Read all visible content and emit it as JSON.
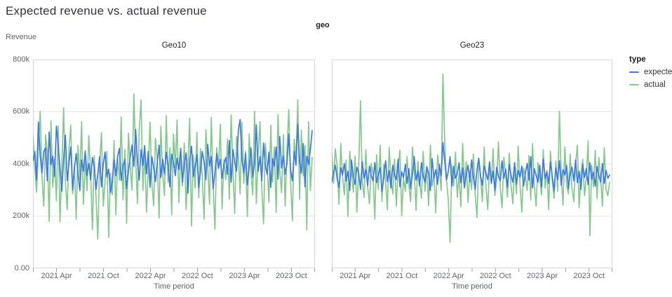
{
  "page": {
    "title": "Expected revenue vs. actual revenue"
  },
  "chart": {
    "facet_field": "geo",
    "y_axis": {
      "title": "Revenue",
      "tick_labels_top_to_bottom": [
        "800k",
        "600k",
        "400k",
        "200k",
        "0.00"
      ]
    },
    "x_axis": {
      "title": "Time period",
      "tick_labels": [
        "2021 Apr",
        "2021 Oct",
        "2022 Apr",
        "2022 Oct",
        "2023 Apr",
        "2023 Oct"
      ]
    },
    "legend": {
      "title": "type",
      "items": [
        {
          "label": "expected",
          "color": "#3d79e8"
        },
        {
          "label": "actual",
          "color": "#85c98f"
        }
      ]
    },
    "colors": {
      "gridline": "#e6e6e6",
      "panel_border": "#d6d6d6",
      "tick": "#9a9a9a",
      "label_gray": "#5f6368"
    }
  },
  "chart_data": {
    "type": "line",
    "title": "Expected revenue vs. actual revenue",
    "facet_by": "geo",
    "xlabel": "Time period",
    "ylabel": "Revenue",
    "ylim": [
      0,
      800000
    ],
    "x_unit": "week",
    "x_range": "2021-01 to 2023-12 (weekly samples, 156 points per series)",
    "x_tick_labels": [
      "2021 Apr",
      "2021 Oct",
      "2022 Apr",
      "2022 Oct",
      "2023 Apr",
      "2023 Oct"
    ],
    "y_unit": "revenue, values_k are thousands (approximate, read from plot)",
    "legend_position": "right",
    "grid": true,
    "facets": [
      {
        "name": "Geo10",
        "series": [
          {
            "name": "expected",
            "color": "#3d79e8",
            "values_k": [
              412,
              448,
              338,
              560,
              430,
              365,
              448,
              462,
              335,
              522,
              398,
              430,
              352,
              545,
              470,
              385,
              295,
              420,
              510,
              336,
              405,
              465,
              300,
              385,
              440,
              361,
              298,
              415,
              372,
              450,
              355,
              402,
              338,
              425,
              390,
              302,
              360,
              428,
              312,
              398,
              445,
              350,
              380,
              290,
              330,
              415,
              355,
              430,
              460,
              336,
              392,
              418,
              305,
              372,
              428,
              472,
              390,
              532,
              410,
              338,
              455,
              395,
              470,
              362,
              448,
              310,
              428,
              385,
              332,
              405,
              472,
              348,
              418,
              362,
              445,
              395,
              312,
              438,
              405,
              355,
              422,
              378,
              460,
              330,
              398,
              442,
              288,
              415,
              468,
              352,
              390,
              435,
              310,
              372,
              448,
              405,
              340,
              475,
              392,
              428,
              305,
              365,
              440,
              382,
              418,
              345,
              398,
              425,
              360,
              490,
              330,
              455,
              405,
              372,
              530,
              570,
              418,
              365,
              440,
              320,
              385,
              462,
              348,
              405,
              550,
              372,
              428,
              335,
              480,
              395,
              360,
              445,
              310,
              420,
              392,
              465,
              342,
              505,
              385,
              430,
              360,
              402,
              515,
              378,
              335,
              448,
              395,
              552,
              410,
              365,
              478,
              312,
              430,
              398,
              455,
              528
            ]
          },
          {
            "name": "actual",
            "color": "#85c98f",
            "values_k": [
              505,
              388,
              292,
              455,
              602,
              350,
              238,
              512,
              442,
              180,
              565,
              310,
              420,
              258,
              545,
              178,
              388,
              615,
              332,
              225,
              462,
              548,
              285,
              395,
              188,
              472,
              340,
              562,
              245,
              415,
              298,
              508,
              362,
              148,
              432,
              270,
              112,
              395,
              520,
              238,
              330,
              448,
              118,
              365,
              282,
              490,
              205,
              425,
              338,
              580,
              262,
              455,
              172,
              518,
              390,
              300,
              668,
              420,
              248,
              532,
              645,
              298,
              452,
              215,
              385,
              560,
              325,
              240,
              498,
              418,
              192,
              545,
              362,
              278,
              585,
              330,
              462,
              205,
              515,
              385,
              568,
              252,
              440,
              315,
              480,
              225,
              398,
              575,
              162,
              435,
              308,
              522,
              270,
              458,
              348,
              188,
              532,
              395,
              245,
              578,
              318,
              150,
              462,
              385,
              552,
              228,
              415,
              340,
              495,
              265,
              588,
              375,
              210,
              505,
              432,
              285,
              560,
              325,
              448,
              198,
              515,
              370,
              282,
              602,
              248,
              435,
              562,
              315,
              170,
              478,
              395,
              252,
              548,
              330,
              465,
              215,
              590,
              372,
              290,
              512,
              238,
              455,
              608,
              335,
              182,
              495,
              412,
              645,
              265,
              530,
              355,
              470,
              148,
              562,
              298,
              425
            ]
          }
        ]
      },
      {
        "name": "Geo23",
        "series": [
          {
            "name": "expected",
            "color": "#3d79e8",
            "values_k": [
              330,
              368,
              395,
              342,
              310,
              385,
              358,
              402,
              335,
              372,
              298,
              415,
              350,
              322,
              388,
              365,
              302,
              410,
              345,
              378,
              318,
              392,
              355,
              335,
              405,
              328,
              362,
              385,
              295,
              348,
              412,
              332,
              375,
              308,
              395,
              358,
              340,
              418,
              312,
              370,
              348,
              398,
              325,
              382,
              305,
              360,
              428,
              338,
              372,
              315,
              405,
              352,
              330,
              390,
              362,
              298,
              420,
              345,
              378,
              322,
              398,
              355,
              482,
              410,
              338,
              372,
              428,
              315,
              390,
              345,
              362,
              405,
              328,
              385,
              308,
              358,
              395,
              332,
              415,
              348,
              302,
              378,
              422,
              355,
              318,
              392,
              365,
              340,
              408,
              325,
              372,
              298,
              388,
              352,
              335,
              412,
              345,
              380,
              310,
              398,
              358,
              330,
              405,
              322,
              375,
              348,
              392,
              315,
              365,
              402,
              338,
              428,
              308,
              382,
              355,
              330,
              395,
              312,
              418,
              345,
              370,
              325,
              408,
              352,
              298,
              385,
              340,
              412,
              318,
              378,
              358,
              395,
              305,
              362,
              388,
              335,
              415,
              328,
              372,
              302,
              398,
              348,
              382,
              320,
              405,
              342,
              368,
              315,
              390,
              355,
              330,
              402,
              325,
              375,
              345,
              358
            ]
          },
          {
            "name": "actual",
            "color": "#85c98f",
            "values_k": [
              440,
              325,
              458,
              390,
              245,
              478,
              352,
              282,
              415,
              198,
              448,
              368,
              292,
              430,
              215,
              385,
              642,
              338,
              272,
              455,
              312,
              248,
              402,
              358,
              188,
              435,
              302,
              472,
              255,
              398,
              332,
              225,
              462,
              345,
              285,
              418,
              238,
              388,
              452,
              202,
              345,
              295,
              428,
              318,
              255,
              465,
              375,
              222,
              410,
              332,
              268,
              448,
              295,
              385,
              240,
              472,
              315,
              358,
              212,
              435,
              378,
              298,
              745,
              482,
              338,
              262,
              100,
              395,
              315,
              445,
              272,
              362,
              235,
              478,
              325,
              408,
              252,
              372,
              302,
              438,
              285,
              195,
              418,
              348,
              255,
              465,
              312,
              225,
              395,
              335,
              458,
              278,
              342,
              485,
              308,
              232,
              425,
              358,
              272,
              442,
              318,
              248,
              398,
              285,
              468,
              325,
              215,
              385,
              352,
              298,
              432,
              262,
              478,
              315,
              238,
              405,
              345,
              282,
              455,
              308,
              375,
              225,
              448,
              335,
              268,
              412,
              295,
              602,
              352,
              242,
              465,
              318,
              285,
              438,
              308,
              255,
              395,
              472,
              232,
              362,
              418,
              278,
              345,
              488,
              125,
              395,
              312,
              452,
              268,
              425,
              348,
              238,
              462,
              302,
              278,
              330
            ]
          }
        ]
      }
    ]
  }
}
